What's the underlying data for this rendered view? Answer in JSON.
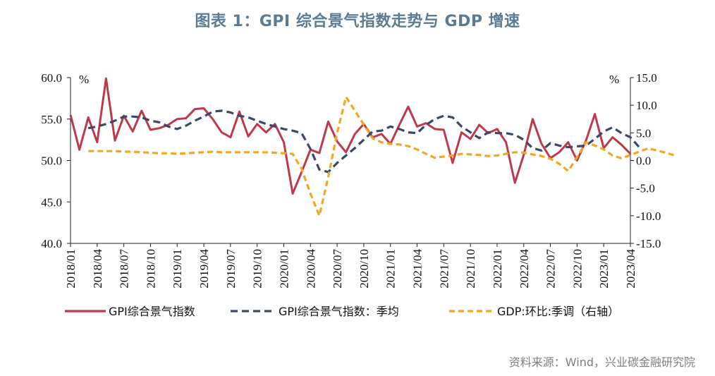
{
  "title": "图表 1：GPI 综合景气指数走势与 GDP 增速",
  "source": "资料来源：Wind，兴业碳金融研究院",
  "chart_data": {
    "type": "line",
    "title": "图表 1：GPI 综合景气指数走势与 GDP 增速",
    "left_unit": "%",
    "right_unit": "%",
    "left_axis": {
      "min": 40,
      "max": 60,
      "ticks": [
        "40.0",
        "45.0",
        "50.0",
        "55.0",
        "60.0"
      ]
    },
    "right_axis": {
      "min": -15,
      "max": 15,
      "ticks": [
        "-15.0",
        "-10.0",
        "-5.0",
        "0.0",
        "5.0",
        "10.0",
        "15.0"
      ]
    },
    "x_tick_labels": [
      "2018/01",
      "2018/04",
      "2018/07",
      "2018/10",
      "2019/01",
      "2019/04",
      "2019/07",
      "2019/10",
      "2020/01",
      "2020/04",
      "2020/07",
      "2020/10",
      "2021/01",
      "2021/04",
      "2021/07",
      "2021/10",
      "2022/01",
      "2022/04",
      "2022/07",
      "2022/10",
      "2023/01",
      "2023/04"
    ],
    "series": [
      {
        "name": "GPI综合景气指数",
        "axis": "left",
        "color": "#c0394b",
        "style": "solid",
        "start_month_index": 0,
        "values": [
          55.5,
          51.3,
          55.2,
          52.2,
          59.9,
          52.4,
          55.4,
          53.5,
          56.0,
          53.7,
          53.9,
          54.3,
          55.0,
          55.1,
          56.2,
          56.3,
          55.0,
          53.4,
          52.8,
          55.9,
          52.9,
          54.4,
          53.4,
          54.4,
          52.2,
          46.0,
          48.6,
          51.3,
          50.9,
          54.7,
          52.3,
          51.0,
          53.2,
          54.4,
          52.8,
          53.2,
          52.0,
          54.3,
          56.5,
          54.1,
          54.5,
          53.8,
          53.7,
          49.7,
          53.4,
          52.6,
          54.3,
          53.3,
          53.8,
          52.2,
          47.3,
          50.7,
          55.0,
          52.0,
          50.3,
          51.0,
          52.2,
          50.0,
          52.4,
          55.6,
          51.5,
          52.8,
          51.9,
          50.8
        ]
      },
      {
        "name": "GPI综合景气指数：季均",
        "axis": "left",
        "color": "#3a4a66",
        "style": "dashed",
        "start_month_index": 2,
        "values": [
          53.9,
          54.1,
          54.4,
          54.8,
          55.3,
          55.3,
          55.2,
          54.8,
          54.6,
          54.1,
          53.8,
          54.2,
          54.8,
          55.3,
          55.9,
          56.0,
          55.8,
          55.4,
          55.2,
          54.8,
          54.4,
          54.1,
          53.8,
          53.6,
          53.3,
          51.4,
          48.9,
          48.6,
          49.7,
          50.6,
          51.5,
          52.5,
          53.5,
          53.6,
          54.1,
          53.8,
          53.4,
          53.3,
          54.3,
          55.0,
          55.4,
          55.2,
          54.1,
          53.4,
          52.7,
          53.4,
          53.3,
          53.3,
          53.1,
          52.5,
          51.5,
          51.2,
          52.1,
          51.8,
          51.6,
          51.7,
          51.8,
          52.6,
          53.5,
          54.0,
          53.3,
          52.8,
          51.6
        ]
      },
      {
        "name": "GDP:环比:季调（右轴）",
        "axis": "right",
        "color": "#f5a623",
        "style": "dashed",
        "start_month_index": 2,
        "values": [
          1.7,
          1.7,
          1.7,
          1.7,
          1.6,
          1.6,
          1.5,
          1.4,
          1.3,
          1.3,
          1.2,
          1.3,
          1.4,
          1.5,
          1.6,
          1.5,
          1.5,
          1.5,
          1.5,
          1.5,
          1.5,
          1.4,
          1.3,
          1.2,
          -1.5,
          -6.0,
          -10.0,
          -3.0,
          5.0,
          11.5,
          9.0,
          6.5,
          4.0,
          3.3,
          3.0,
          2.9,
          2.6,
          2.0,
          1.2,
          0.5,
          0.7,
          0.9,
          1.2,
          1.1,
          1.0,
          0.8,
          0.9,
          1.2,
          1.5,
          1.4,
          1.1,
          0.8,
          0.3,
          -0.6,
          -1.9,
          0.6,
          3.3,
          2.7,
          2.0,
          0.9,
          0.4,
          1.0,
          1.6,
          2.2,
          1.8,
          1.4,
          0.9
        ]
      }
    ],
    "legend": [
      "GPI综合景气指数",
      "GPI综合景气指数：季均",
      "GDP:环比:季调（右轴）"
    ]
  }
}
